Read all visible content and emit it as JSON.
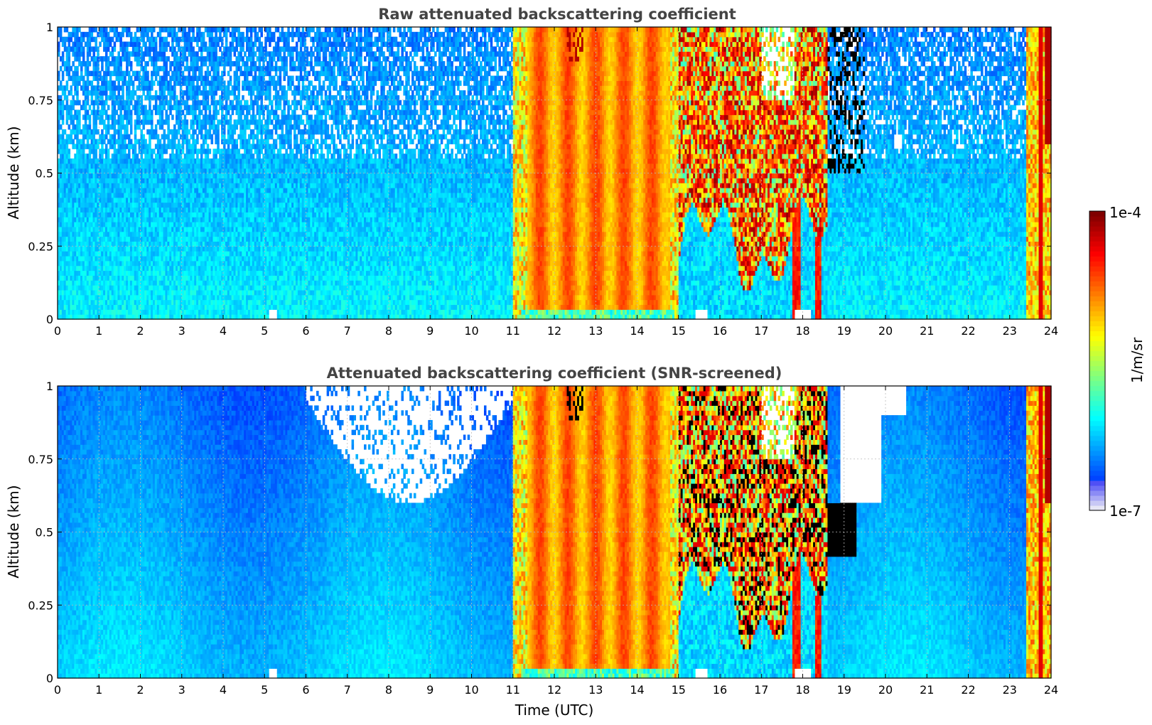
{
  "chart_data": [
    {
      "type": "heatmap",
      "title": "Raw attenuated backscattering coefficient",
      "xlabel": "",
      "ylabel": "Altitude (km)",
      "xlim": [
        0,
        24
      ],
      "ylim": [
        0,
        1
      ],
      "x_ticks": [
        "0",
        "1",
        "2",
        "3",
        "4",
        "5",
        "6",
        "7",
        "8",
        "9",
        "10",
        "11",
        "12",
        "13",
        "14",
        "15",
        "16",
        "17",
        "18",
        "19",
        "20",
        "21",
        "22",
        "23",
        "24"
      ],
      "y_ticks": [
        "0",
        "0.25",
        "0.5",
        "0.75",
        "1"
      ],
      "grid": true,
      "screened": false,
      "columns_per_hour": 20,
      "rows": 60,
      "seed": 11
    },
    {
      "type": "heatmap",
      "title": "Attenuated backscattering coefficient (SNR-screened)",
      "xlabel": "Time (UTC)",
      "ylabel": "Altitude (km)",
      "xlim": [
        0,
        24
      ],
      "ylim": [
        0,
        1
      ],
      "x_ticks": [
        "0",
        "1",
        "2",
        "3",
        "4",
        "5",
        "6",
        "7",
        "8",
        "9",
        "10",
        "11",
        "12",
        "13",
        "14",
        "15",
        "16",
        "17",
        "18",
        "19",
        "20",
        "21",
        "22",
        "23",
        "24"
      ],
      "y_ticks": [
        "0",
        "0.25",
        "0.5",
        "0.75",
        "1"
      ],
      "grid": true,
      "screened": true,
      "columns_per_hour": 20,
      "rows": 60,
      "seed": 23
    }
  ],
  "colorbar": {
    "label": "1/m/sr",
    "max_label": "1e-4",
    "min_label": "1e-7",
    "scale": "log",
    "colormap": "jet",
    "min_color": "#e6e6f5",
    "max_color": "#800000"
  }
}
